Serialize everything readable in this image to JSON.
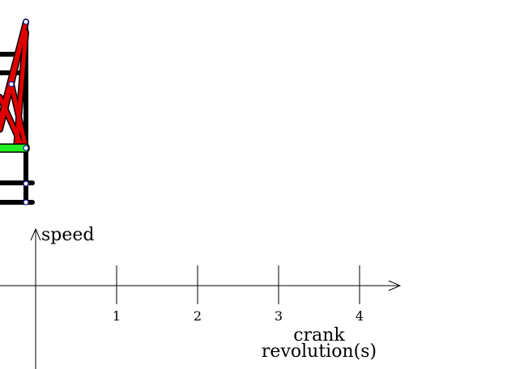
{
  "graph": {
    "y_label": "speed",
    "x_label_lines": [
      "crank",
      "revolution(s)"
    ],
    "x_ticks": [
      1,
      2,
      3,
      4
    ]
  }
}
